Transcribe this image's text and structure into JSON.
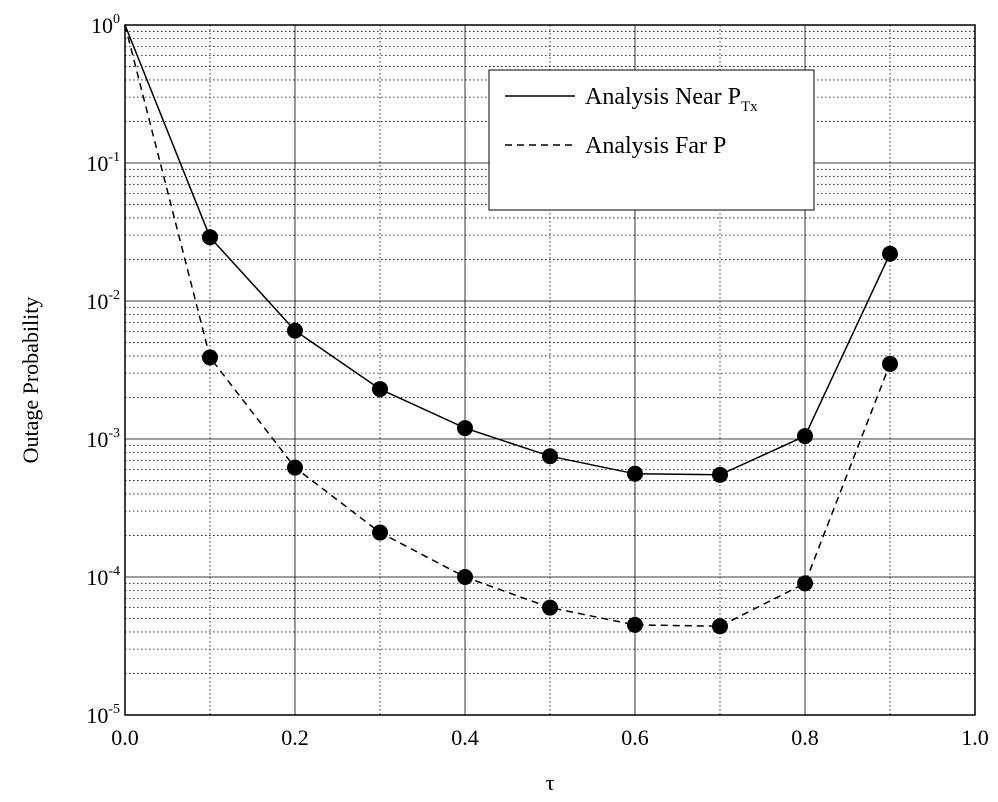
{
  "chart_data": {
    "type": "line",
    "xlabel": "τ",
    "ylabel": "Outage Probability",
    "xlim": [
      0.0,
      1.0
    ],
    "ylim": [
      1e-05,
      1
    ],
    "yscale": "log",
    "grid": true,
    "legend_position": "top-right",
    "x_ticks": [
      "0.0",
      "0.2",
      "0.4",
      "0.6",
      "0.8",
      "1.0"
    ],
    "y_ticks": [
      {
        "base": "10",
        "exp": "0"
      },
      {
        "base": "10",
        "exp": "-1"
      },
      {
        "base": "10",
        "exp": "-2"
      },
      {
        "base": "10",
        "exp": "-3"
      },
      {
        "base": "10",
        "exp": "-4"
      },
      {
        "base": "10",
        "exp": "-5"
      }
    ],
    "series": [
      {
        "name": "Analysis Near P",
        "name_sub": "Tx",
        "line_style": "solid",
        "x": [
          0.0,
          0.1,
          0.2,
          0.3,
          0.4,
          0.5,
          0.6,
          0.7,
          0.8,
          0.9
        ],
        "y": [
          1.0,
          0.029,
          0.0061,
          0.0023,
          0.0012,
          0.00075,
          0.00056,
          0.00055,
          0.00105,
          0.022
        ]
      },
      {
        "name": "Analysis Far P",
        "name_sub": "",
        "line_style": "dashed",
        "x": [
          0.0,
          0.1,
          0.2,
          0.3,
          0.4,
          0.5,
          0.6,
          0.7,
          0.8,
          0.9
        ],
        "y": [
          1.0,
          0.0039,
          0.00062,
          0.00021,
          0.0001,
          6e-05,
          4.5e-05,
          4.4e-05,
          9e-05,
          0.0035
        ]
      }
    ]
  }
}
